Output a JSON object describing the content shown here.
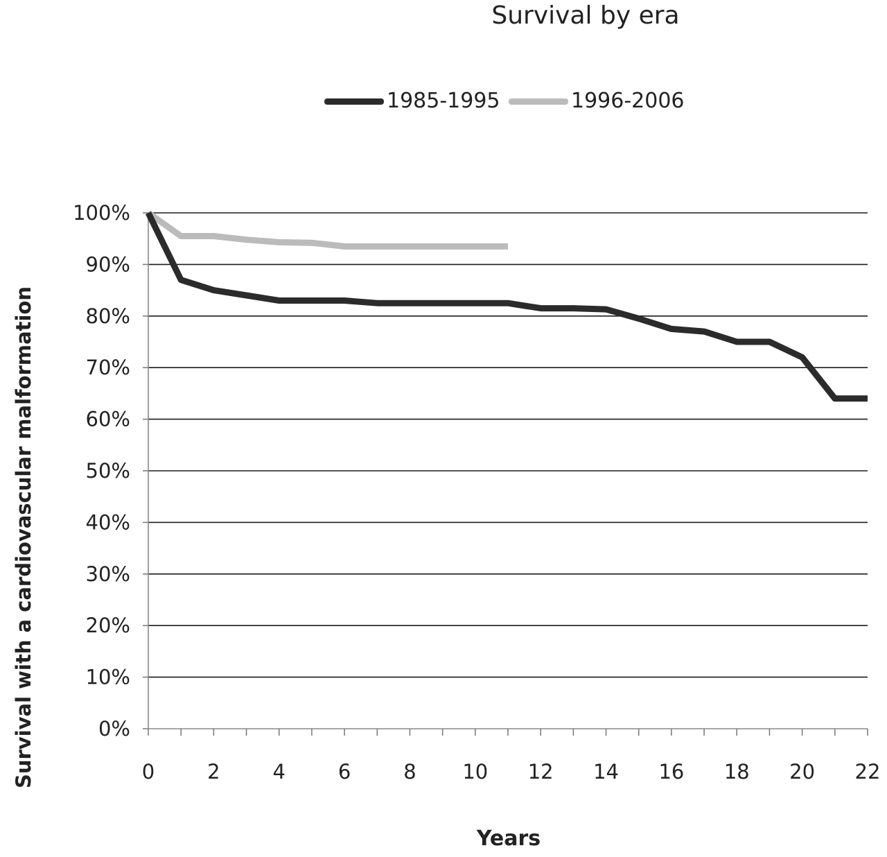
{
  "chart_data": {
    "type": "line",
    "title": "Survival by era",
    "xlabel": "Years",
    "ylabel": "Survival with a cardiovascular malformation",
    "xlim": [
      0,
      22
    ],
    "ylim": [
      0,
      100
    ],
    "x_ticks": [
      "0",
      "2",
      "4",
      "6",
      "8",
      "10",
      "12",
      "14",
      "16",
      "18",
      "20",
      "22"
    ],
    "y_ticks": [
      "0%",
      "10%",
      "20%",
      "30%",
      "40%",
      "50%",
      "60%",
      "70%",
      "80%",
      "90%",
      "100%"
    ],
    "grid": "horizontal",
    "legend_position": "top",
    "series": [
      {
        "name": "1985-1995",
        "color": "#2b2b2b",
        "x": [
          0,
          1,
          2,
          3,
          4,
          5,
          6,
          7,
          8,
          9,
          10,
          11,
          12,
          13,
          14,
          15,
          16,
          17,
          18,
          19,
          20,
          21,
          22
        ],
        "y": [
          100,
          87,
          85,
          84,
          83,
          83,
          83,
          82.5,
          82.5,
          82.5,
          82.5,
          82.5,
          81.5,
          81.5,
          81.3,
          79.5,
          77.5,
          77,
          75,
          75,
          72,
          64,
          64
        ]
      },
      {
        "name": "1996-2006",
        "color": "#bbbbbb",
        "x": [
          0,
          1,
          2,
          3,
          4,
          5,
          6,
          7,
          8,
          9,
          10,
          11
        ],
        "y": [
          100,
          95.5,
          95.5,
          94.8,
          94.3,
          94.2,
          93.5,
          93.5,
          93.5,
          93.5,
          93.5,
          93.5
        ]
      }
    ]
  }
}
